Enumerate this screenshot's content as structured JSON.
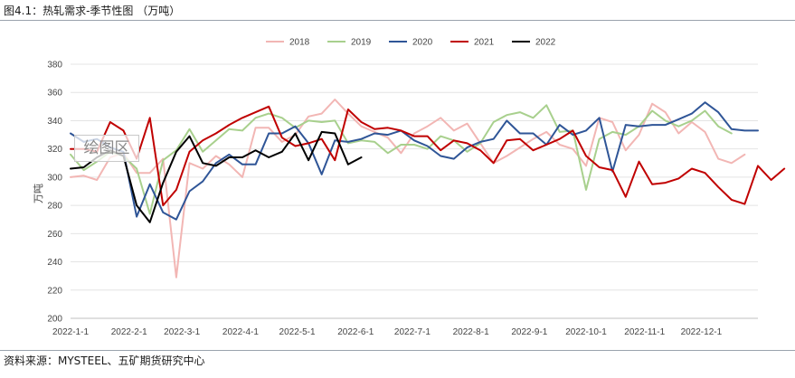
{
  "header": {
    "title": "图4.1：热轧需求-季节性图 （万吨）"
  },
  "footer": {
    "source": "资料来源：MYSTEEL、五矿期货研究中心"
  },
  "watermark": "绘图区",
  "chart_data": {
    "type": "line",
    "title": "",
    "xlabel": "",
    "ylabel": "万吨",
    "ylim": [
      200,
      380
    ],
    "yticks": [
      200,
      220,
      240,
      260,
      280,
      300,
      320,
      340,
      360,
      380
    ],
    "x_tick_labels": [
      "2022-1-1",
      "2022-2-1",
      "2022-3-1",
      "2022-4-1",
      "2022-5-1",
      "2022-6-1",
      "2022-7-1",
      "2022-8-1",
      "2022-9-1",
      "2022-10-1",
      "2022-11-1",
      "2022-12-1"
    ],
    "grid": "horizontal",
    "legend": "top-center",
    "x_unit": "week",
    "series": [
      {
        "name": "2018",
        "color": "#f2b6b4",
        "values": [
          300,
          301,
          298,
          314,
          317,
          303,
          303,
          313,
          229,
          310,
          306,
          315,
          309,
          300,
          335,
          335,
          325,
          330,
          343,
          345,
          355,
          345,
          336,
          332,
          328,
          317,
          331,
          336,
          342,
          333,
          338,
          324,
          310,
          315,
          321,
          327,
          332,
          323,
          320,
          308,
          342,
          339,
          319,
          330,
          352,
          346,
          331,
          339,
          332,
          313,
          310,
          316
        ]
      },
      {
        "name": "2019",
        "color": "#a8d08d",
        "values": [
          316,
          305,
          311,
          318,
          315,
          306,
          274,
          312,
          319,
          334,
          318,
          326,
          334,
          333,
          342,
          345,
          342,
          335,
          340,
          339,
          340,
          324,
          326,
          325,
          317,
          323,
          323,
          320,
          329,
          326,
          318,
          324,
          339,
          344,
          346,
          342,
          351,
          332,
          333,
          291,
          327,
          332,
          330,
          336,
          347,
          340,
          336,
          340,
          347,
          336,
          331
        ]
      },
      {
        "name": "2020",
        "color": "#2f5597",
        "values": [
          331,
          325,
          327,
          321,
          318,
          272,
          295,
          275,
          270,
          290,
          297,
          310,
          316,
          309,
          309,
          331,
          331,
          336,
          324,
          302,
          326,
          325,
          327,
          331,
          330,
          333,
          326,
          322,
          315,
          313,
          321,
          325,
          327,
          340,
          331,
          331,
          323,
          337,
          330,
          333,
          342,
          304,
          337,
          336,
          337,
          337,
          341,
          345,
          353,
          346,
          334,
          333,
          333
        ]
      },
      {
        "name": "2021",
        "color": "#c00000",
        "values": [
          320,
          320,
          318,
          339,
          333,
          313,
          342,
          280,
          291,
          318,
          326,
          331,
          337,
          342,
          346,
          350,
          328,
          322,
          324,
          327,
          312,
          348,
          339,
          334,
          335,
          333,
          329,
          329,
          319,
          326,
          324,
          319,
          310,
          326,
          327,
          319,
          323,
          327,
          333,
          315,
          307,
          305,
          286,
          311,
          295,
          296,
          299,
          306,
          303,
          293,
          284,
          281,
          308,
          298,
          306
        ]
      },
      {
        "name": "2022",
        "color": "#000000",
        "values": [
          306,
          307,
          314,
          319,
          315,
          280,
          268,
          296,
          318,
          329,
          310,
          308,
          314,
          314,
          319,
          314,
          318,
          331,
          312,
          332,
          331,
          309,
          314
        ]
      }
    ]
  }
}
